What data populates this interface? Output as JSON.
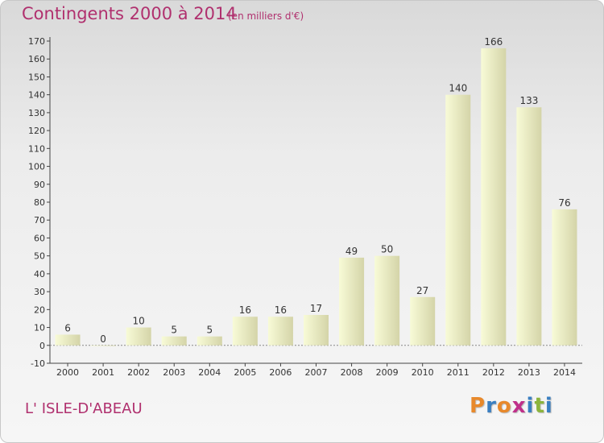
{
  "header": {
    "title": "Contingents 2000 à 2014",
    "subtitle": "(en milliers d'€)"
  },
  "footer": {
    "commune": "L' ISLE-D'ABEAU",
    "logo_letters": [
      "P",
      "r",
      "o",
      "x",
      "i",
      "t",
      "i"
    ],
    "logo_colors": [
      "#e8892b",
      "#3a7fc1",
      "#e8892b",
      "#c0308a",
      "#3a7fc1",
      "#8cb43c",
      "#3a7fc1"
    ]
  },
  "colors": {
    "bar_light": "#f8fbd7",
    "bar_dark": "#d4d4a8",
    "text": "#333333",
    "axis": "#444444",
    "accent": "#b0306e"
  },
  "chart_data": {
    "type": "bar",
    "categories": [
      "2000",
      "2001",
      "2002",
      "2003",
      "2004",
      "2005",
      "2006",
      "2007",
      "2008",
      "2009",
      "2010",
      "2011",
      "2012",
      "2013",
      "2014"
    ],
    "values": [
      6,
      0,
      10,
      5,
      5,
      16,
      16,
      17,
      49,
      50,
      27,
      140,
      166,
      133,
      76
    ],
    "data_labels": [
      "6",
      "0",
      "10",
      "5",
      "5",
      "16",
      "16",
      "17",
      "49",
      "50",
      "27",
      "140",
      "166",
      "133",
      "76"
    ],
    "title": "Contingents 2000 à 2014",
    "xlabel": "",
    "ylabel": "",
    "ylim": [
      -10,
      170
    ],
    "yticks": [
      -10,
      0,
      10,
      20,
      30,
      40,
      50,
      60,
      70,
      80,
      90,
      100,
      110,
      120,
      130,
      140,
      150,
      160,
      170
    ],
    "grid": false,
    "legend": "none"
  }
}
